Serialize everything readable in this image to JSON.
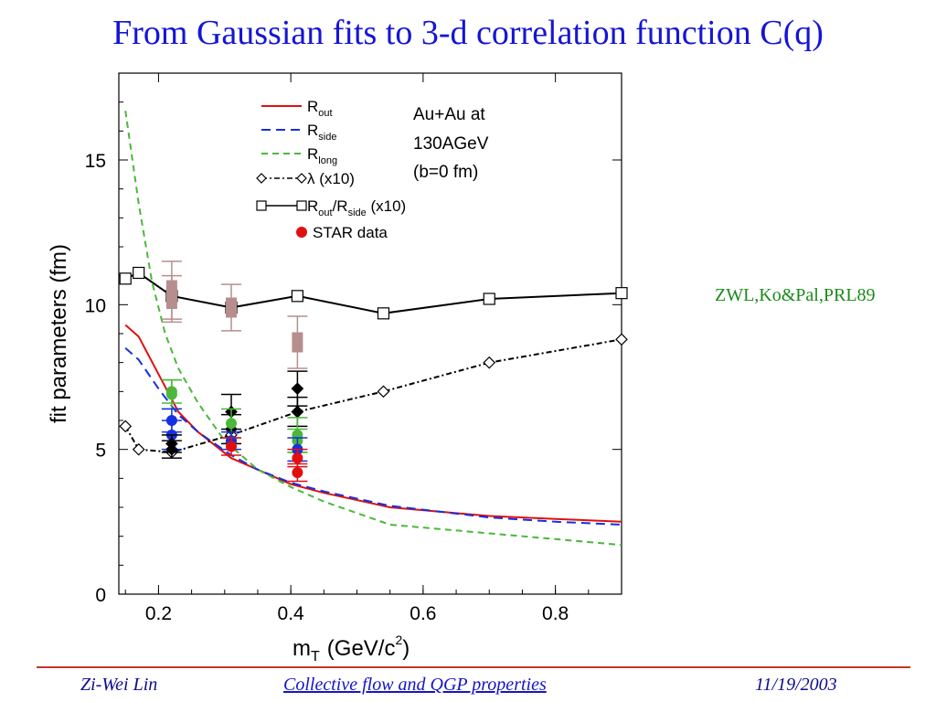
{
  "slide": {
    "title": "From Gaussian fits to 3-d correlation function C(q)",
    "side_note": "ZWL,Ko&Pal,PRL89",
    "footer_left": "Zi-Wei Lin",
    "footer_center": "Collective flow and QGP properties",
    "footer_right": "11/19/2003"
  },
  "chart_data": {
    "type": "line",
    "xlabel": "m",
    "xlabel_sub": "T",
    "xlabel_unit": "(GeV/c",
    "xlabel_sup": "2",
    "xlabel_close": ")",
    "ylabel": "fit parameters (fm)",
    "xlim": [
      0.14,
      0.9
    ],
    "ylim": [
      0,
      18
    ],
    "xticks": [
      "0.2",
      "0.4",
      "0.6",
      "0.8"
    ],
    "xtick_values": [
      0.2,
      0.4,
      0.6,
      0.8
    ],
    "yticks": [
      "0",
      "5",
      "10",
      "15"
    ],
    "ytick_values": [
      0,
      5,
      10,
      15
    ],
    "annotation": [
      "Au+Au at",
      "130AGeV",
      "(b=0 fm)"
    ],
    "legend": [
      {
        "main": "R",
        "sub": "out",
        "suffix": ""
      },
      {
        "main": "R",
        "sub": "side",
        "suffix": ""
      },
      {
        "main": "R",
        "sub": "long",
        "suffix": ""
      },
      {
        "main": "λ (x10)",
        "sub": "",
        "suffix": ""
      },
      {
        "main": "R",
        "sub": "out",
        "suffix": "/R",
        "sub2": "side",
        "tail": " (x10)"
      },
      {
        "main": "STAR data",
        "sub": "",
        "suffix": ""
      }
    ],
    "colors": {
      "out": "#e01010",
      "side": "#1530e0",
      "long": "#4ab83a",
      "black": "#000000",
      "star_old": "#b78e8e"
    },
    "series": [
      {
        "name": "R_out",
        "color": "#e01010",
        "dash": "",
        "marker": "none",
        "x": [
          0.15,
          0.17,
          0.2,
          0.23,
          0.26,
          0.31,
          0.35,
          0.4,
          0.45,
          0.55,
          0.7,
          0.8,
          0.9
        ],
        "y": [
          9.3,
          8.9,
          7.6,
          6.3,
          5.6,
          4.7,
          4.3,
          3.8,
          3.5,
          3.0,
          2.7,
          2.6,
          2.5
        ]
      },
      {
        "name": "R_side",
        "color": "#1530e0",
        "dash": "10,6",
        "marker": "none",
        "x": [
          0.15,
          0.17,
          0.2,
          0.23,
          0.26,
          0.31,
          0.35,
          0.4,
          0.45,
          0.55,
          0.7,
          0.8,
          0.9
        ],
        "y": [
          8.5,
          8.1,
          7.1,
          6.2,
          5.6,
          4.8,
          4.3,
          3.85,
          3.55,
          3.05,
          2.65,
          2.5,
          2.4
        ]
      },
      {
        "name": "R_long",
        "color": "#4ab83a",
        "dash": "7,5",
        "marker": "none",
        "x": [
          0.15,
          0.17,
          0.19,
          0.21,
          0.23,
          0.26,
          0.3,
          0.35,
          0.4,
          0.45,
          0.5,
          0.55,
          0.7,
          0.8,
          0.9
        ],
        "y": [
          16.7,
          13.5,
          10.8,
          9.0,
          7.8,
          6.6,
          5.3,
          4.3,
          3.7,
          3.2,
          2.8,
          2.4,
          2.1,
          1.9,
          1.7
        ]
      },
      {
        "name": "λ (x10)",
        "color": "#000000",
        "dash": "6,3,2,3",
        "marker": "diamond",
        "x": [
          0.15,
          0.17,
          0.22,
          0.31,
          0.41,
          0.54,
          0.7,
          0.9
        ],
        "y": [
          5.8,
          5.0,
          4.9,
          5.5,
          6.3,
          7.0,
          8.0,
          8.8
        ]
      },
      {
        "name": "R_out/R_side (x10)",
        "color": "#000000",
        "dash": "",
        "marker": "square",
        "x": [
          0.15,
          0.17,
          0.22,
          0.31,
          0.41,
          0.54,
          0.7,
          0.9
        ],
        "y": [
          10.9,
          11.1,
          10.3,
          9.9,
          10.3,
          9.7,
          10.2,
          10.4
        ]
      }
    ],
    "star_data": [
      {
        "x": 0.22,
        "y": 10.5,
        "err": 1.0,
        "color": "#b78e8e",
        "shape": "rect"
      },
      {
        "x": 0.22,
        "y": 10.2,
        "err": 0.8,
        "color": "#b78e8e",
        "shape": "rect"
      },
      {
        "x": 0.31,
        "y": 9.9,
        "err": 0.8,
        "color": "#b78e8e",
        "shape": "rect"
      },
      {
        "x": 0.41,
        "y": 8.7,
        "err": 0.9,
        "color": "#b78e8e",
        "shape": "rect"
      },
      {
        "x": 0.22,
        "y": 7.0,
        "err": 0.4,
        "color": "#4ab83a",
        "shape": "circle"
      },
      {
        "x": 0.22,
        "y": 6.9,
        "err": 0.5,
        "color": "#4ab83a",
        "shape": "circle"
      },
      {
        "x": 0.22,
        "y": 6.0,
        "err": 0.4,
        "color": "#1530e0",
        "shape": "circle"
      },
      {
        "x": 0.22,
        "y": 5.5,
        "err": 0.5,
        "color": "#1530e0",
        "shape": "circle"
      },
      {
        "x": 0.22,
        "y": 5.2,
        "err": 0.3,
        "color": "#000000",
        "shape": "diamond"
      },
      {
        "x": 0.22,
        "y": 5.0,
        "err": 0.3,
        "color": "#000000",
        "shape": "diamond"
      },
      {
        "x": 0.31,
        "y": 6.3,
        "err": 0.6,
        "color": "#000000",
        "shape": "diamond"
      },
      {
        "x": 0.31,
        "y": 5.7,
        "err": 0.5,
        "color": "#000000",
        "shape": "diamond"
      },
      {
        "x": 0.31,
        "y": 5.9,
        "err": 0.5,
        "color": "#4ab83a",
        "shape": "circle"
      },
      {
        "x": 0.31,
        "y": 5.3,
        "err": 0.3,
        "color": "#1530e0",
        "shape": "circle"
      },
      {
        "x": 0.31,
        "y": 5.1,
        "err": 0.3,
        "color": "#e01010",
        "shape": "circle"
      },
      {
        "x": 0.41,
        "y": 7.1,
        "err": 0.6,
        "color": "#000000",
        "shape": "diamond"
      },
      {
        "x": 0.41,
        "y": 6.3,
        "err": 0.5,
        "color": "#000000",
        "shape": "diamond"
      },
      {
        "x": 0.41,
        "y": 5.5,
        "err": 0.6,
        "color": "#4ab83a",
        "shape": "circle"
      },
      {
        "x": 0.41,
        "y": 5.3,
        "err": 0.4,
        "color": "#4ab83a",
        "shape": "circle"
      },
      {
        "x": 0.41,
        "y": 5.0,
        "err": 0.4,
        "color": "#1530e0",
        "shape": "circle"
      },
      {
        "x": 0.41,
        "y": 4.7,
        "err": 0.3,
        "color": "#e01010",
        "shape": "circle"
      },
      {
        "x": 0.41,
        "y": 4.2,
        "err": 0.3,
        "color": "#e01010",
        "shape": "circle"
      }
    ]
  }
}
